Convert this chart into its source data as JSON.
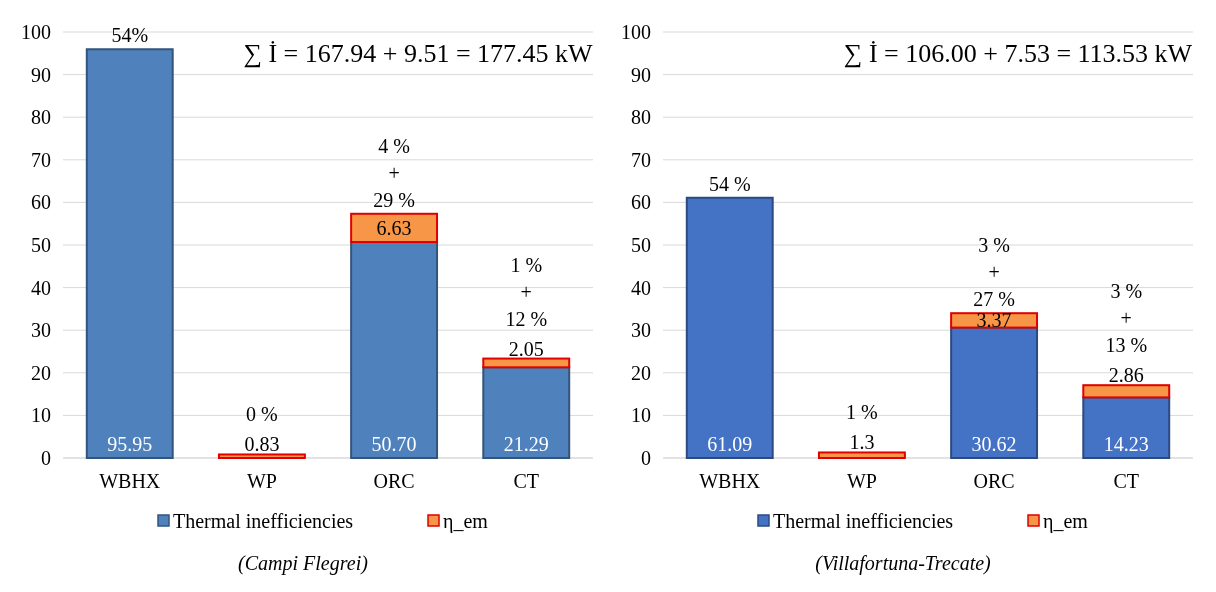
{
  "chart_data": [
    {
      "type": "bar",
      "stacked": true,
      "categories": [
        "WBHX",
        "WP",
        "ORC",
        "CT"
      ],
      "ylim": [
        0,
        100
      ],
      "yticks": [
        0,
        10,
        20,
        30,
        40,
        50,
        60,
        70,
        80,
        90,
        100
      ],
      "grid": "y",
      "legend": "bottom",
      "series": [
        {
          "name": "Thermal inefficiencies",
          "color": "#4f81bd",
          "values": [
            95.95,
            0,
            50.7,
            21.29
          ],
          "value_labels": [
            "95.95",
            null,
            "50.70",
            "21.29"
          ]
        },
        {
          "name": "η_em",
          "color": "#f79646",
          "values": [
            0,
            0.83,
            6.63,
            2.05
          ],
          "value_labels": [
            null,
            "0.83",
            "6.63",
            "2.05"
          ]
        }
      ],
      "annotations": [
        "∑ İ = 167.94 + 9.51 = 177.45 kW",
        "54%",
        "0 %",
        "4 %\n+\n29 %",
        "1 %\n+\n12 %",
        "(Campi Flegrei)"
      ]
    },
    {
      "type": "bar",
      "stacked": true,
      "categories": [
        "WBHX",
        "WP",
        "ORC",
        "CT"
      ],
      "ylim": [
        0,
        100
      ],
      "yticks": [
        0,
        10,
        20,
        30,
        40,
        50,
        60,
        70,
        80,
        90,
        100
      ],
      "grid": "y",
      "legend": "bottom",
      "series": [
        {
          "name": "Thermal inefficiencies",
          "color": "#4472c4",
          "values": [
            61.09,
            0,
            30.62,
            14.23
          ],
          "value_labels": [
            "61.09",
            null,
            "30.62",
            "14.23"
          ]
        },
        {
          "name": "η_em",
          "color": "#f79646",
          "values": [
            0,
            1.3,
            3.37,
            2.86
          ],
          "value_labels": [
            null,
            "1.3",
            "3.37",
            "2.86"
          ]
        }
      ],
      "annotations": [
        "∑ İ = 106.00 + 7.53 = 113.53 kW",
        "54 %",
        "1 %",
        "3 %\n+\n27 %",
        "3 %\n+\n13 %",
        "(Villafortuna-Trecate)"
      ]
    }
  ]
}
